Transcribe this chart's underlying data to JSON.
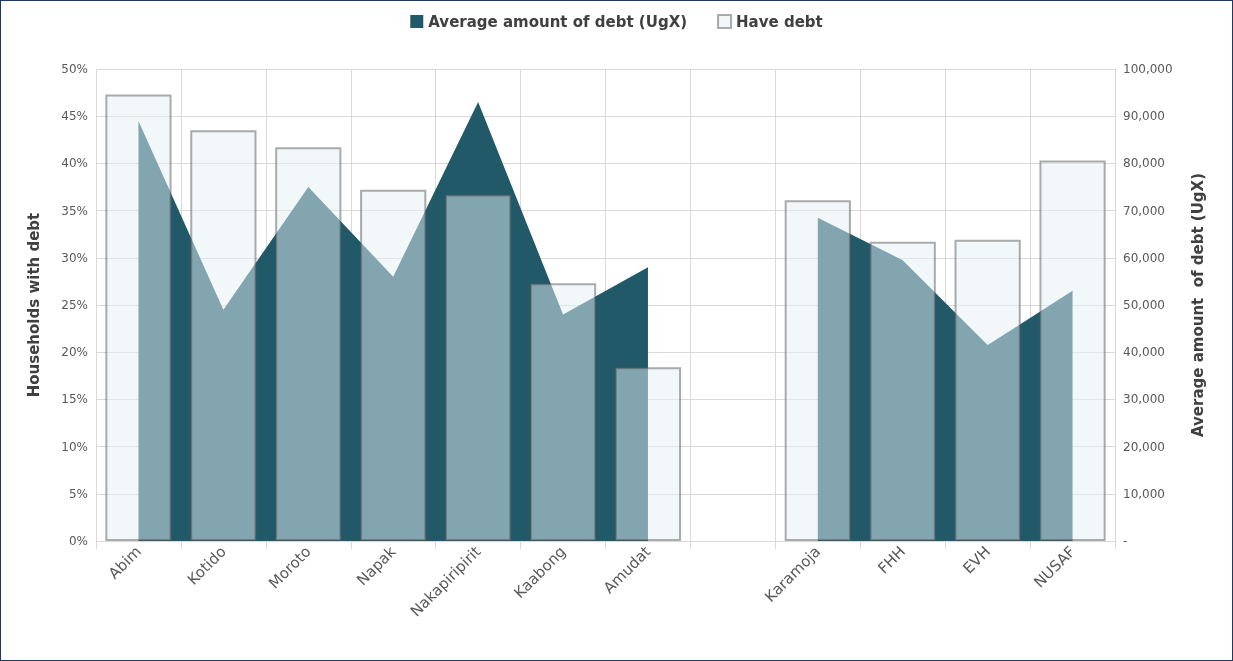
{
  "chart_data": {
    "type": "bar",
    "ylabel": "Households with debt",
    "y2label": "Average amount  of debt (UgX)",
    "categories": [
      "Abim",
      "Kotido",
      "Moroto",
      "Napak",
      "Nakapiripirit",
      "Kaabong",
      "Amudat",
      null,
      "Karamoja",
      "FHH",
      "EVH",
      "NUSAF"
    ],
    "series": [
      {
        "name": "Average amount of debt (UgX)",
        "type": "area",
        "axis": "y2",
        "color": "#215968",
        "values": [
          89000,
          49000,
          75000,
          56000,
          93000,
          48000,
          58000,
          null,
          68500,
          59500,
          41500,
          53000
        ]
      },
      {
        "name": "Have debt",
        "color": "#e6f2f5",
        "values": [
          47.3,
          43.5,
          41.7,
          37.2,
          36.7,
          27.3,
          18.4,
          null,
          36.1,
          31.7,
          31.9,
          40.3
        ]
      }
    ],
    "ylim": [
      0,
      50
    ],
    "yticks": [
      {
        "value": 0,
        "label": "0%"
      },
      {
        "value": 5,
        "label": "5%"
      },
      {
        "value": 10,
        "label": "10%"
      },
      {
        "value": 15,
        "label": "15%"
      },
      {
        "value": 20,
        "label": "20%"
      },
      {
        "value": 25,
        "label": "25%"
      },
      {
        "value": 30,
        "label": "30%"
      },
      {
        "value": 35,
        "label": "35%"
      },
      {
        "value": 40,
        "label": "40%"
      },
      {
        "value": 45,
        "label": "45%"
      },
      {
        "value": 50,
        "label": "50%"
      }
    ],
    "y2lim": [
      0,
      100000
    ],
    "y2ticks": [
      {
        "value": 0,
        "label": "-"
      },
      {
        "value": 10000,
        "label": "10,000"
      },
      {
        "value": 20000,
        "label": "20,000"
      },
      {
        "value": 30000,
        "label": "30,000"
      },
      {
        "value": 40000,
        "label": "40,000"
      },
      {
        "value": 50000,
        "label": "50,000"
      },
      {
        "value": 60000,
        "label": "60,000"
      },
      {
        "value": 70000,
        "label": "70,000"
      },
      {
        "value": 80000,
        "label": "80,000"
      },
      {
        "value": 90000,
        "label": "90,000"
      },
      {
        "value": 100000,
        "label": "100,000"
      }
    ],
    "grid": true,
    "legend": "top"
  }
}
